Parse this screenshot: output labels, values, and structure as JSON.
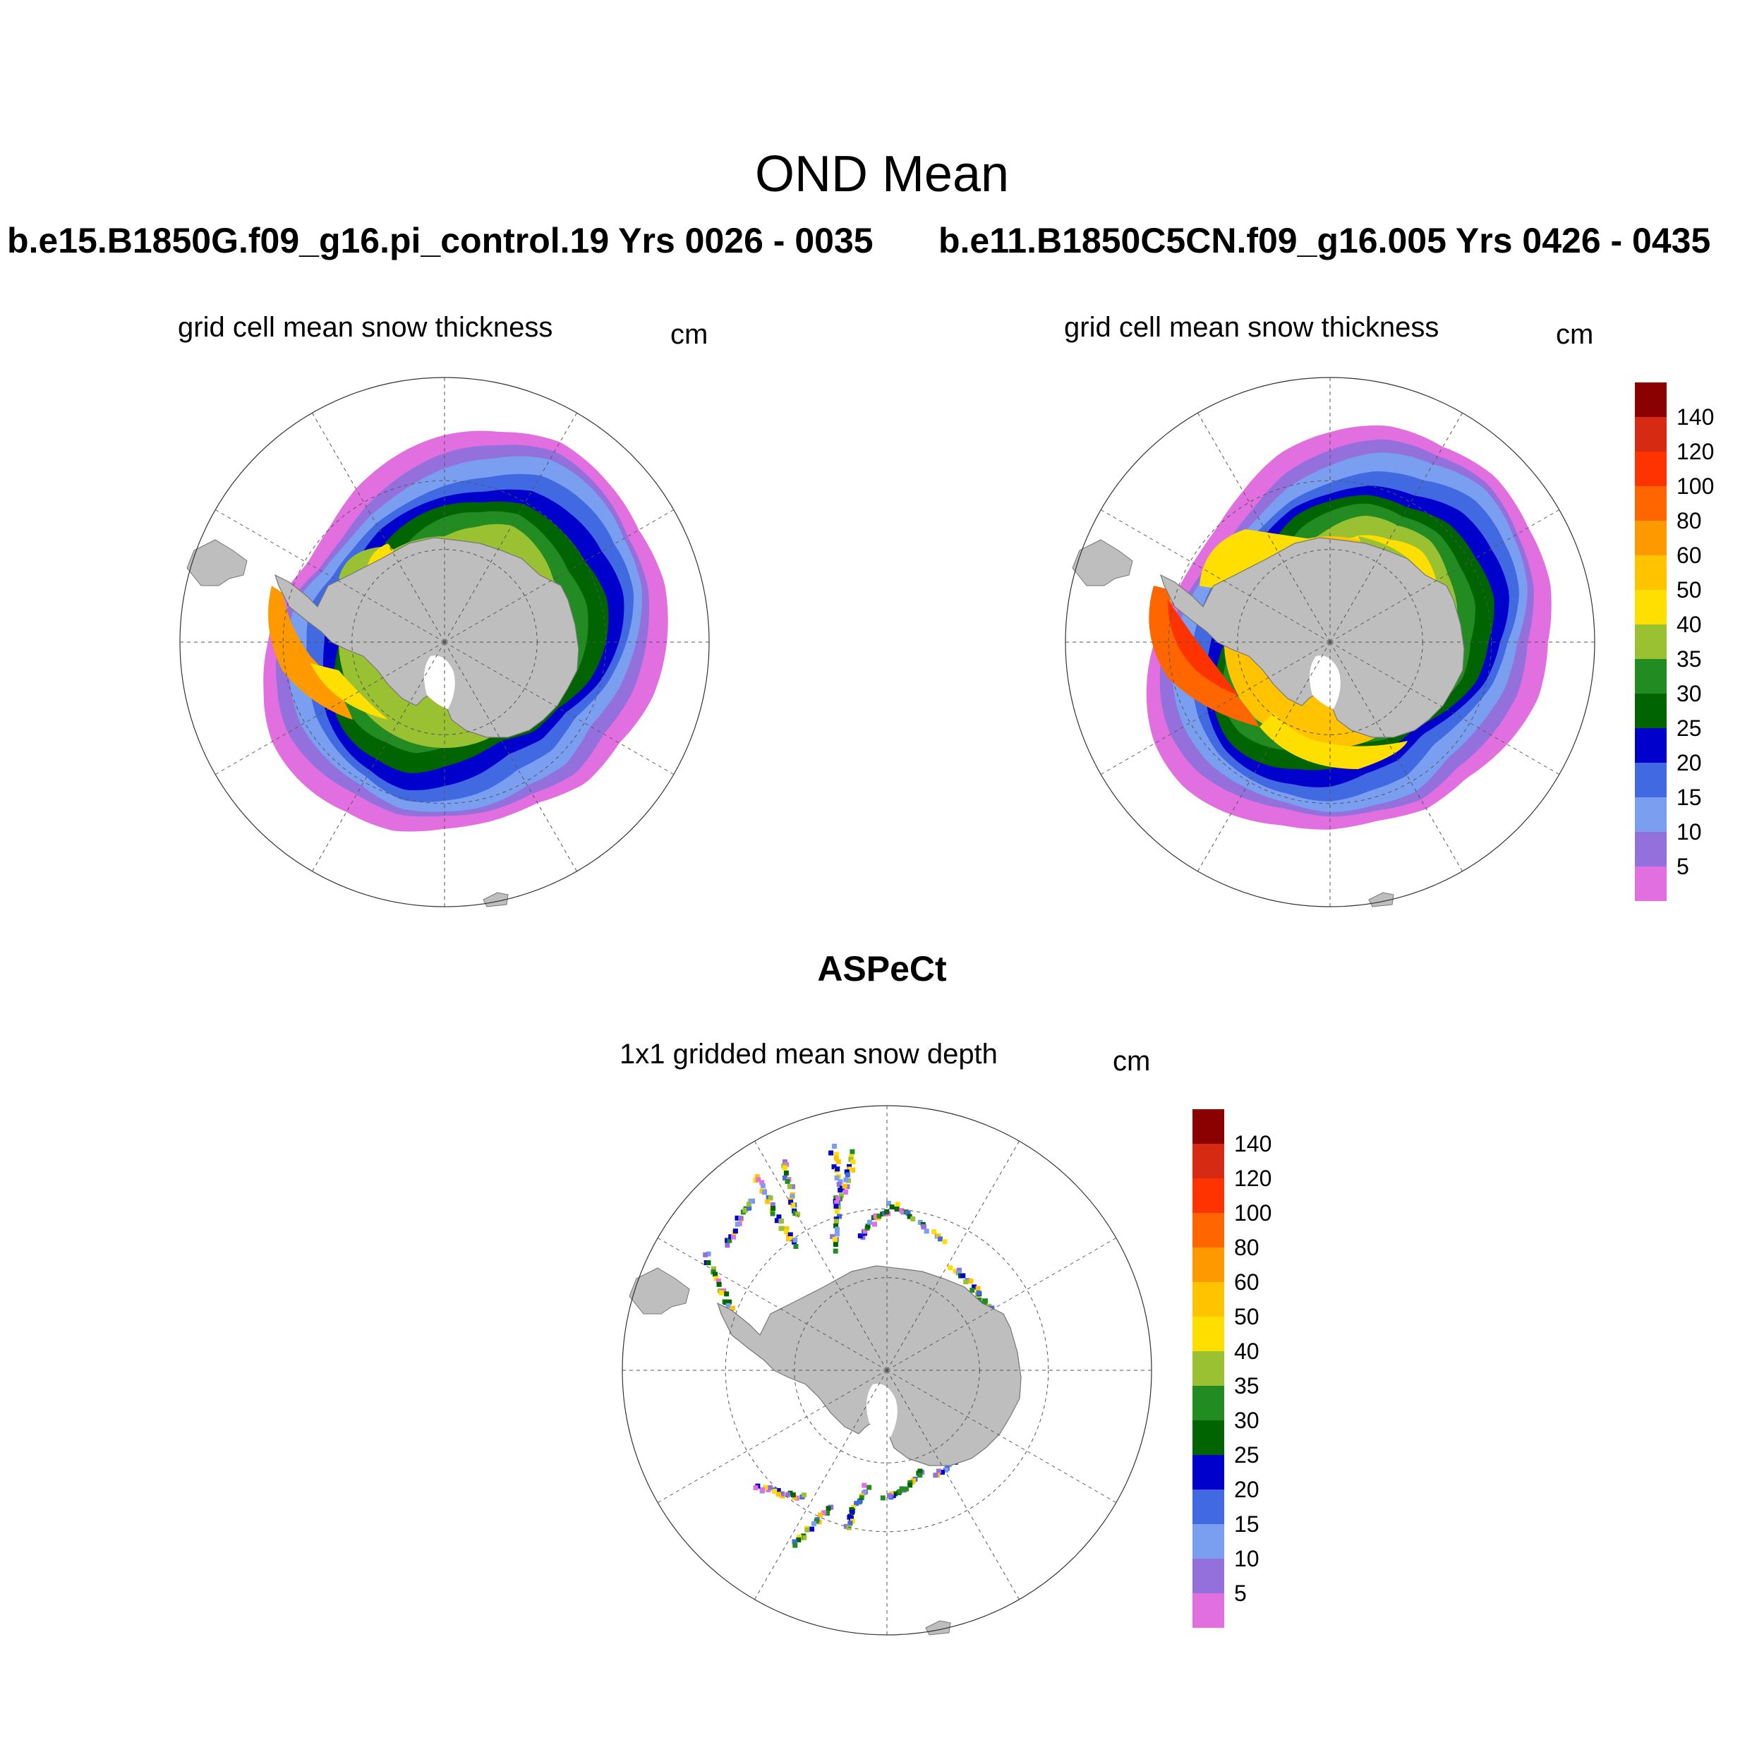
{
  "figure": {
    "title": "OND Mean",
    "runs": [
      "b.e15.B1850G.f09_g16.pi_control.19  Yrs 0026 - 0035",
      "b.e11.B1850C5CN.f09_g16.005  Yrs 0426 - 0435"
    ],
    "panel_left": {
      "subtitle": "grid cell mean snow thickness",
      "unit": "cm"
    },
    "panel_right": {
      "subtitle": "grid cell mean snow thickness",
      "unit": "cm"
    },
    "aspect_title": "ASPeCt",
    "panel_bottom": {
      "subtitle": "1x1 gridded mean snow depth",
      "unit": "cm"
    }
  },
  "map": {
    "projection": "south-polar-stereographic",
    "land_color": "#bebebe",
    "grid": "dashed"
  },
  "colorbar": {
    "labels": [
      "140",
      "120",
      "100",
      "80",
      "60",
      "50",
      "40",
      "35",
      "30",
      "25",
      "20",
      "15",
      "10",
      "5"
    ],
    "colors": [
      "#8b0000",
      "#d62a12",
      "#ff3300",
      "#ff6600",
      "#ff9900",
      "#ffc300",
      "#ffdf00",
      "#9ac132",
      "#228b22",
      "#006400",
      "#0000cd",
      "#4169e1",
      "#7b9ff0",
      "#9370db",
      "#e16fe0"
    ]
  }
}
